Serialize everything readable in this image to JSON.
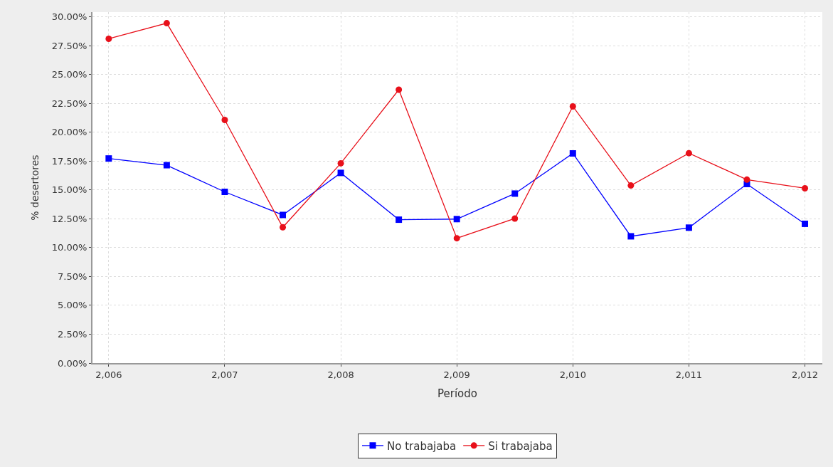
{
  "chart_data": {
    "type": "line",
    "xlabel": "Período",
    "ylabel": "% desertores",
    "x": [
      2006,
      2006.5,
      2007,
      2007.5,
      2008,
      2008.5,
      2009,
      2009.5,
      2010,
      2010.5,
      2011,
      2011.5,
      2012
    ],
    "series": [
      {
        "name": "No trabajaba",
        "color": "#0000ff",
        "marker": "square",
        "values": [
          17.72,
          17.14,
          14.83,
          12.83,
          16.47,
          12.42,
          12.47,
          14.68,
          18.16,
          10.98,
          11.73,
          15.51,
          12.06
        ]
      },
      {
        "name": "Si trabajaba",
        "color": "#e8101a",
        "marker": "circle",
        "values": [
          28.09,
          29.44,
          21.06,
          11.76,
          17.3,
          23.68,
          10.81,
          12.52,
          22.23,
          15.38,
          18.18,
          15.89,
          15.14
        ]
      }
    ],
    "xlim": [
      2005.86,
      2012.15
    ],
    "xticks": [
      {
        "value": 2006,
        "label": "2,006"
      },
      {
        "value": 2007,
        "label": "2,007"
      },
      {
        "value": 2008,
        "label": "2,008"
      },
      {
        "value": 2009,
        "label": "2,009"
      },
      {
        "value": 2010,
        "label": "2,010"
      },
      {
        "value": 2011,
        "label": "2,011"
      },
      {
        "value": 2012,
        "label": "2,012"
      }
    ],
    "ylim": [
      0,
      30.4
    ],
    "yticks": [
      {
        "value": 0,
        "label": "0.00%"
      },
      {
        "value": 2.5,
        "label": "2.50%"
      },
      {
        "value": 5,
        "label": "5.00%"
      },
      {
        "value": 7.5,
        "label": "7.50%"
      },
      {
        "value": 10,
        "label": "10.00%"
      },
      {
        "value": 12.5,
        "label": "12.50%"
      },
      {
        "value": 15,
        "label": "15.00%"
      },
      {
        "value": 17.5,
        "label": "17.50%"
      },
      {
        "value": 20,
        "label": "20.00%"
      },
      {
        "value": 22.5,
        "label": "22.50%"
      },
      {
        "value": 25,
        "label": "25.00%"
      },
      {
        "value": 27.5,
        "label": "27.50%"
      },
      {
        "value": 30,
        "label": "30.00%"
      }
    ],
    "grid": true,
    "legend": "bottom",
    "line_style": "solid"
  }
}
